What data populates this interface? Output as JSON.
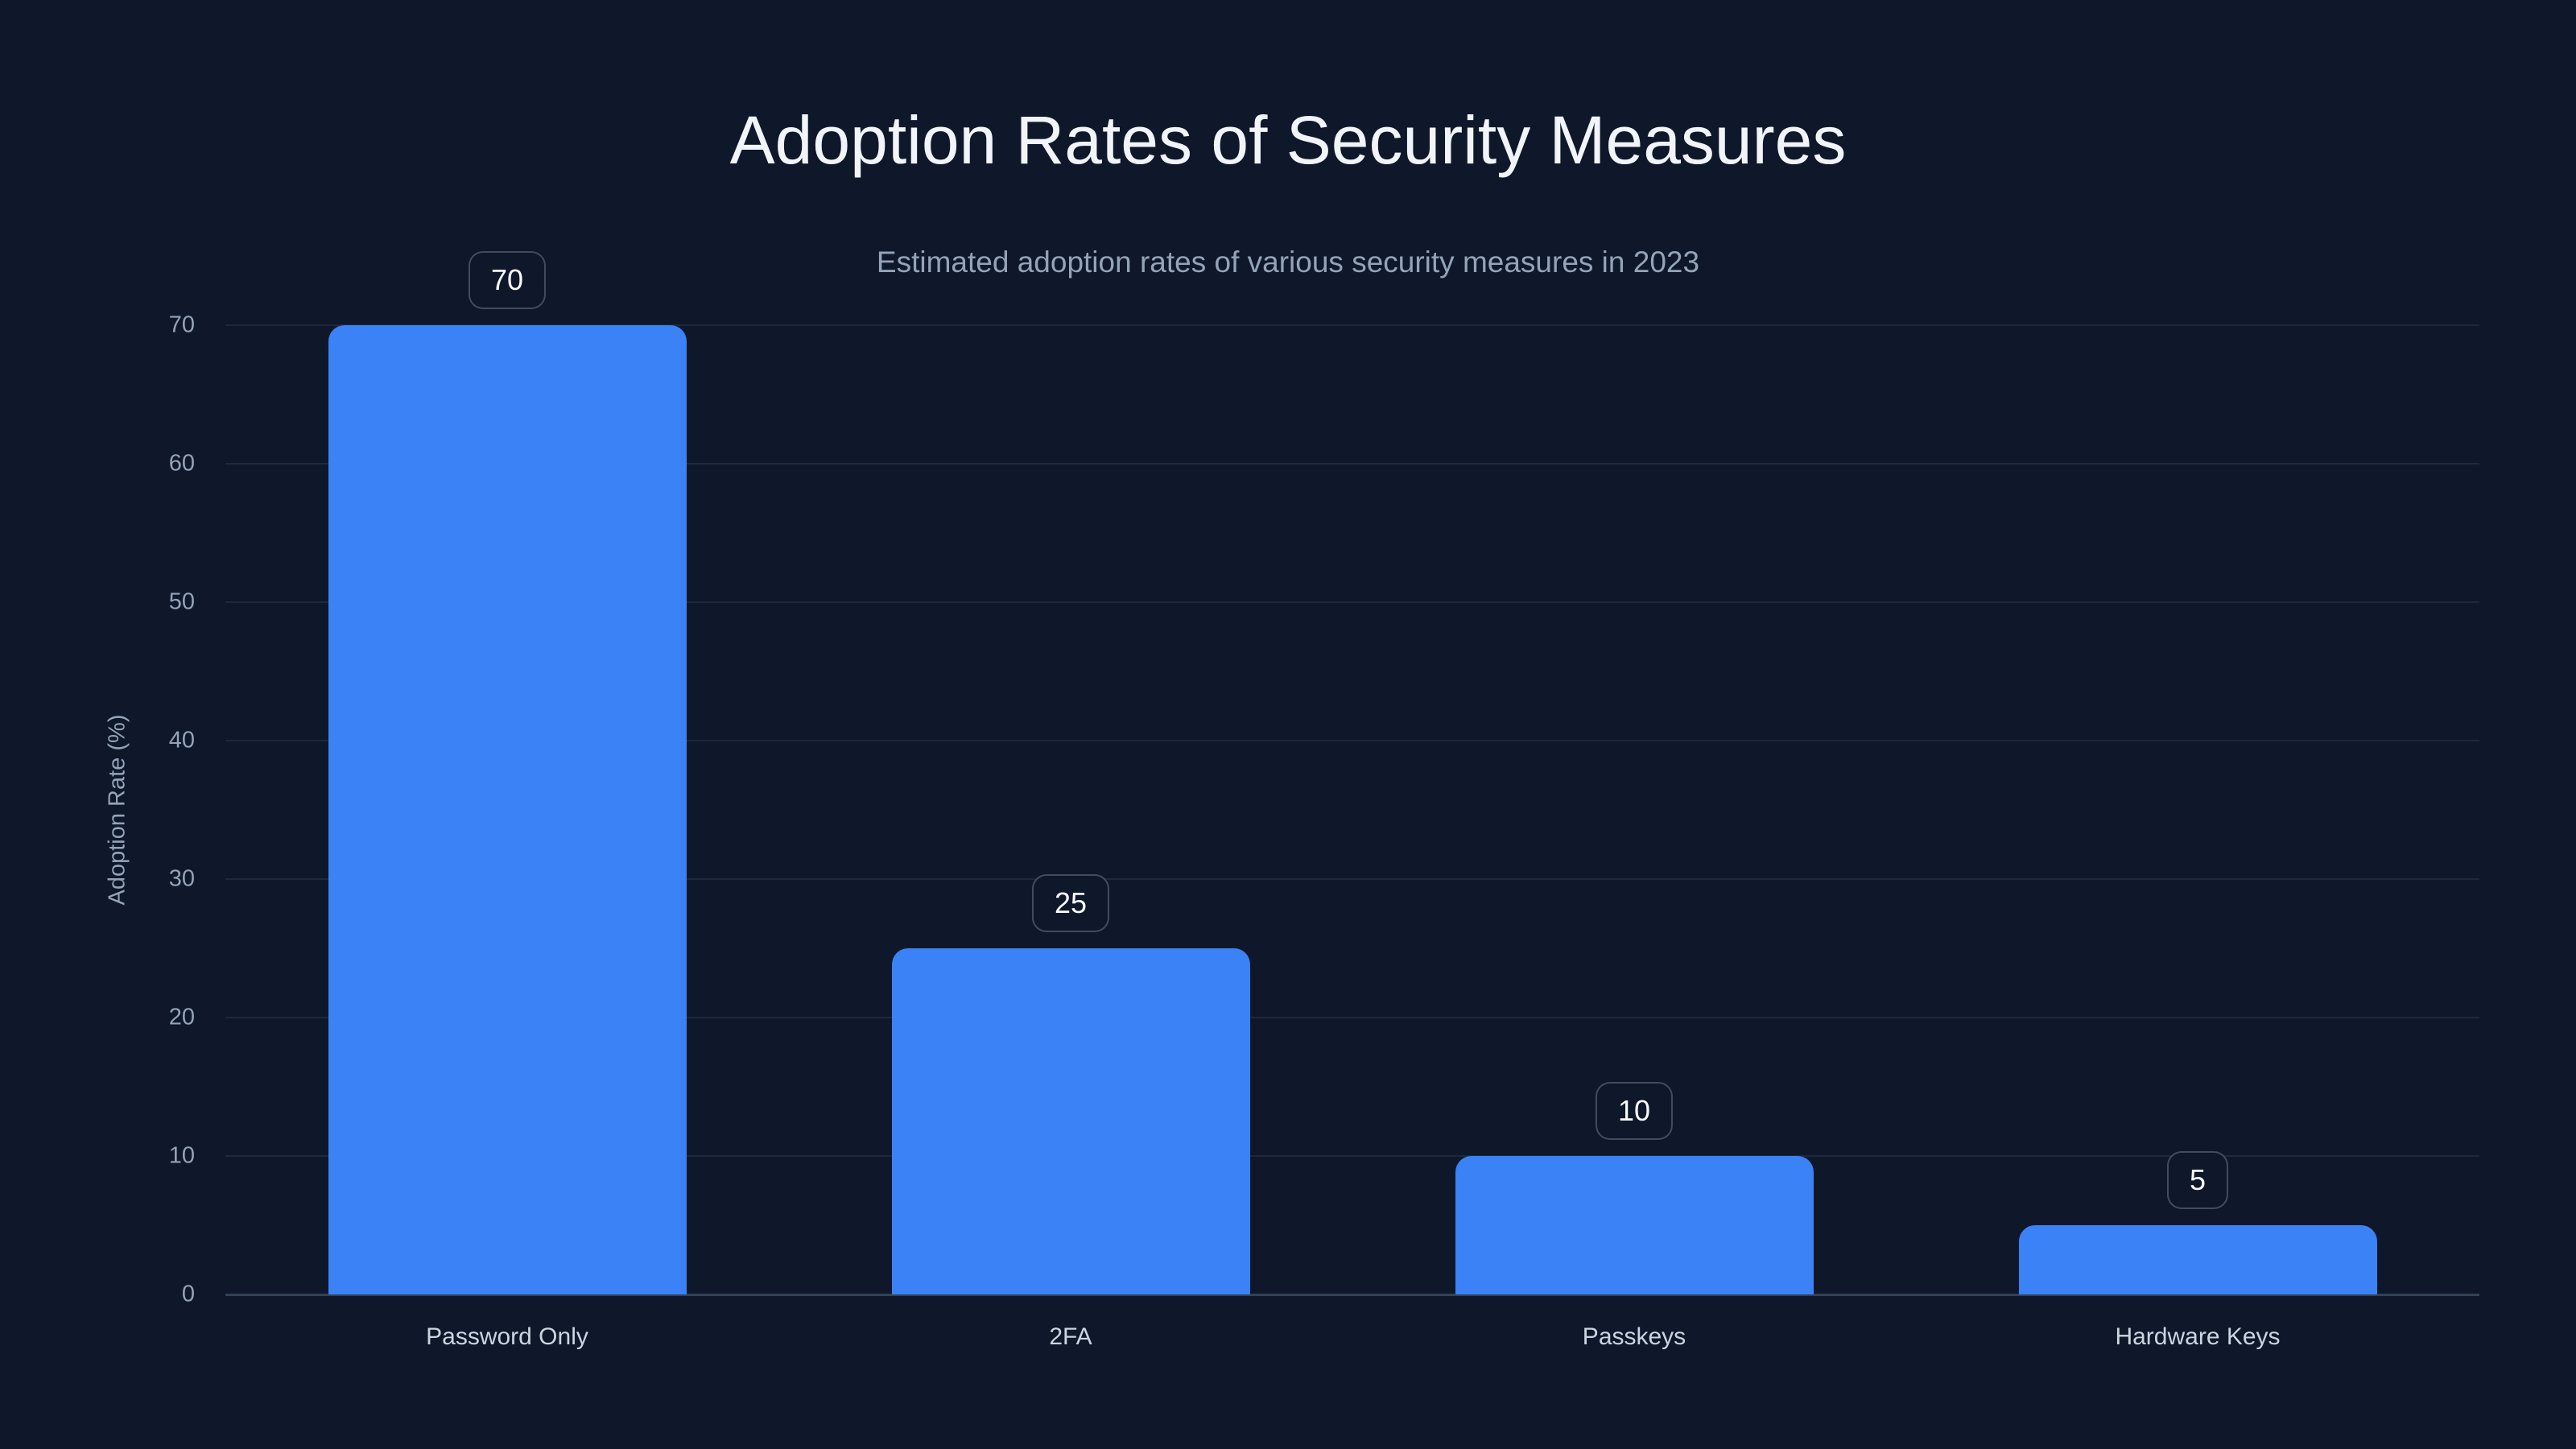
{
  "page": {
    "background_color": "#0f172a"
  },
  "header": {
    "title": "Adoption Rates of Security Measures",
    "subtitle": "Estimated adoption rates of various security measures in 2023"
  },
  "chart_data": {
    "type": "bar",
    "title": "Adoption Rates of Security Measures",
    "subtitle": "Estimated adoption rates of various security measures in 2023",
    "categories": [
      "Password Only",
      "2FA",
      "Passkeys",
      "Hardware Keys"
    ],
    "values": [
      70,
      25,
      10,
      5
    ],
    "value_labels": [
      "70",
      "25",
      "10",
      "5"
    ],
    "xlabel": "",
    "ylabel": "Adoption Rate (%)",
    "ylim": [
      0,
      70
    ],
    "yticks": [
      0,
      10,
      20,
      30,
      40,
      50,
      60,
      70
    ],
    "ytick_labels": [
      "0",
      "10",
      "20",
      "30",
      "40",
      "50",
      "60",
      "70"
    ],
    "grid": true,
    "legend": false,
    "colors": {
      "bar": "#3b82f6",
      "background": "#0f172a",
      "gridline": "#1e293b",
      "axis_line": "#334155",
      "title_text": "#f1f5f9",
      "subtitle_text": "#94a3b8",
      "tick_text": "#94a3b8",
      "category_text": "#cbd5e1",
      "badge_border": "rgba(148,163,184,0.38)",
      "badge_text": "#f8fafc"
    }
  }
}
